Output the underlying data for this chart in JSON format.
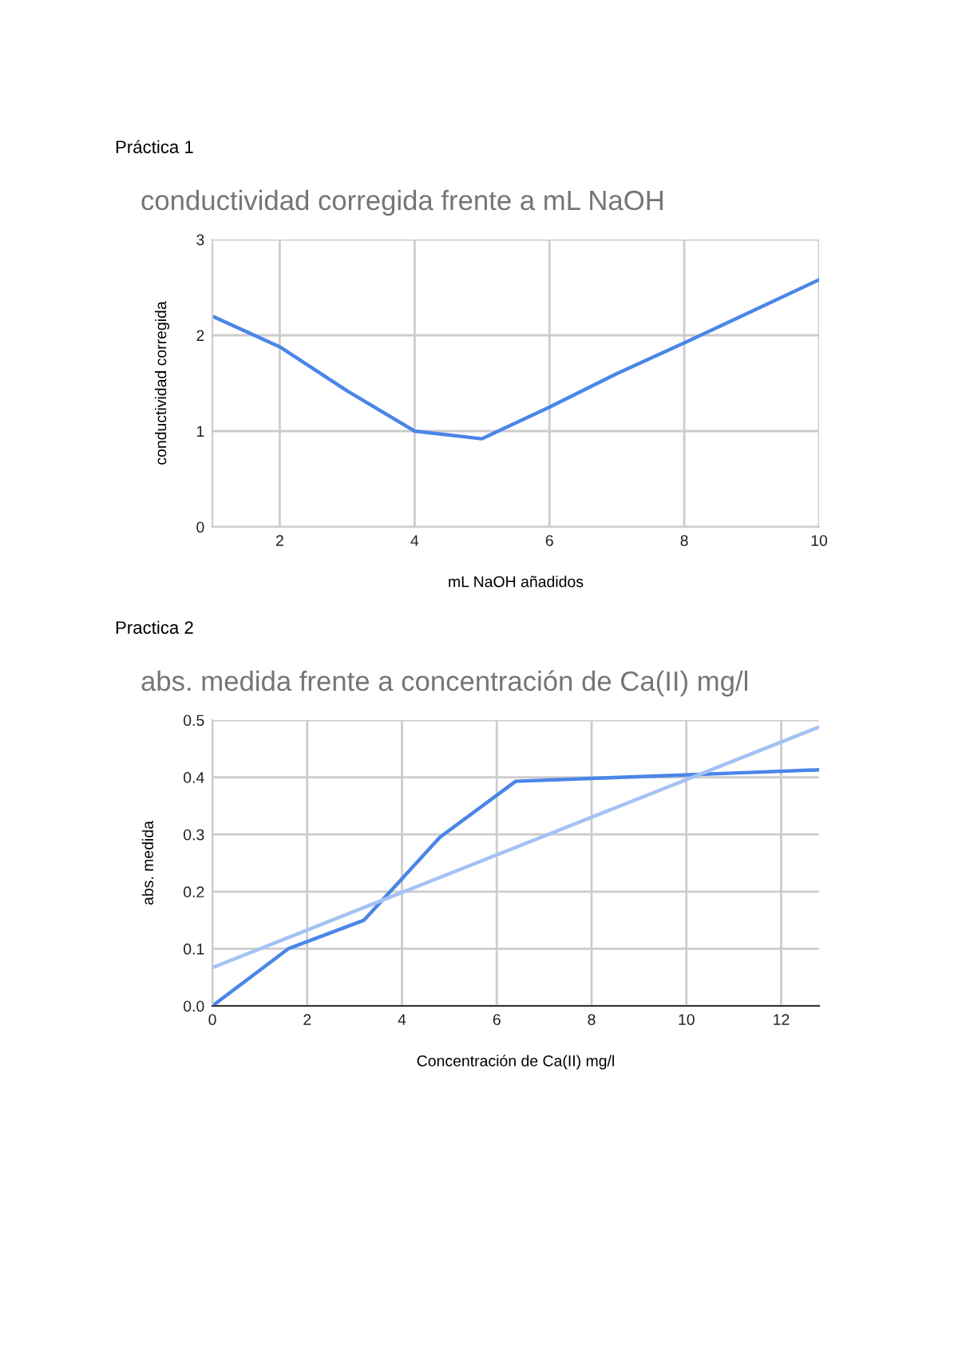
{
  "chart_data": [
    {
      "type": "line",
      "title": "conductividad corregida frente a mL NaOH",
      "xlabel": "mL NaOH añadidos",
      "ylabel": "conductividad corregida",
      "annotations": [
        "Práctica 1"
      ],
      "x": [
        1,
        2,
        3,
        4,
        5,
        6,
        7,
        8,
        9,
        10
      ],
      "series": [
        {
          "color": "#4a86e8",
          "values": [
            2.2,
            1.88,
            1.42,
            1.0,
            0.92,
            1.25,
            1.6,
            1.92,
            2.25,
            2.58
          ]
        }
      ],
      "xlim": [
        1,
        10
      ],
      "xticks": [
        2,
        4,
        6,
        8,
        10
      ],
      "ylim": [
        0,
        3
      ],
      "yticks": [
        0,
        1,
        2,
        3
      ],
      "grid": true,
      "legend": false
    },
    {
      "type": "line",
      "title": "abs. medida frente a concentración de Ca(II) mg/l",
      "xlabel": "Concentración de Ca(II) mg/l",
      "ylabel": "abs. medida",
      "annotations": [
        "Practica 2"
      ],
      "series": [
        {
          "color": "#4a86e8",
          "x": [
            0,
            1.6,
            3.2,
            4.8,
            6.4,
            8,
            9.6,
            11.2,
            12.8
          ],
          "values": [
            0,
            0.1,
            0.15,
            0.295,
            0.393,
            0.398,
            0.403,
            0.408,
            0.413
          ]
        },
        {
          "type": "line",
          "color": "#a4c2f4",
          "x": [
            0,
            12.8
          ],
          "values": [
            0.067,
            0.488
          ]
        }
      ],
      "xlim": [
        0,
        12.8
      ],
      "xticks": [
        0,
        2,
        4,
        6,
        8,
        10,
        12
      ],
      "ylim": [
        0,
        0.5
      ],
      "yticks": [
        {
          "value": 0,
          "label": "0.0"
        },
        0.1,
        0.2,
        0.3,
        0.4,
        0.5
      ],
      "grid": true,
      "legend": false
    }
  ]
}
